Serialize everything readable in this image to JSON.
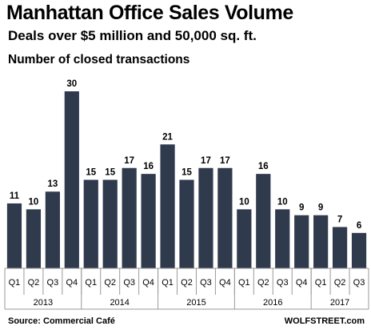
{
  "chart_data": {
    "type": "bar",
    "title": "Manhattan Office Sales Volume",
    "subtitle": "Deals over $5 million and 50,000 sq. ft.",
    "measure_label": "Number of closed transactions",
    "categories": [
      "Q1",
      "Q2",
      "Q3",
      "Q4",
      "Q1",
      "Q2",
      "Q3",
      "Q4",
      "Q1",
      "Q2",
      "Q3",
      "Q4",
      "Q1",
      "Q2",
      "Q3",
      "Q4",
      "Q1",
      "Q2",
      "Q3"
    ],
    "years": [
      {
        "label": "2013",
        "quarters": 4
      },
      {
        "label": "2014",
        "quarters": 4
      },
      {
        "label": "2015",
        "quarters": 4
      },
      {
        "label": "2016",
        "quarters": 4
      },
      {
        "label": "2017",
        "quarters": 3
      }
    ],
    "values": [
      11,
      10,
      13,
      30,
      15,
      15,
      17,
      16,
      21,
      15,
      17,
      17,
      10,
      16,
      10,
      9,
      9,
      7,
      6
    ],
    "ylim": [
      0,
      30
    ],
    "bar_color": "#2f3a4d",
    "grid": false,
    "source": "Source: Commercial Café",
    "brand": "WOLFSTREET.com"
  }
}
